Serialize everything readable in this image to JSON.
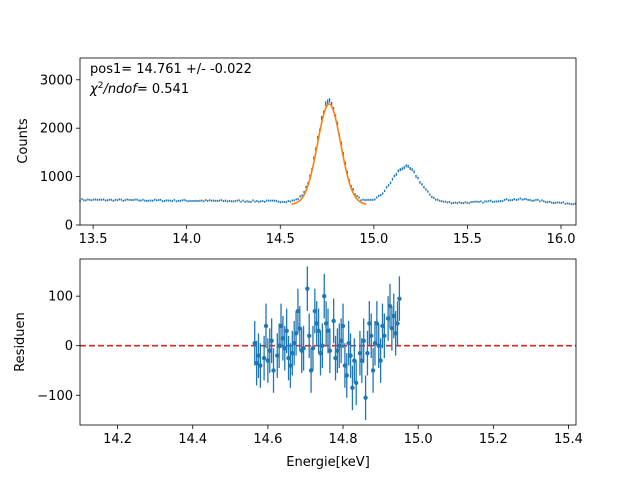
{
  "chart_data": [
    {
      "type": "scatter",
      "panel": "top",
      "ylabel": "Counts",
      "xlabel": "",
      "xlim": [
        13.43,
        16.08
      ],
      "ylim": [
        0,
        3450
      ],
      "xticks": [
        "13.5",
        "14.0",
        "14.5",
        "15.0",
        "15.5",
        "16.0"
      ],
      "xtick_values": [
        13.5,
        14.0,
        14.5,
        15.0,
        15.5,
        16.0
      ],
      "yticks": [
        "0",
        "1000",
        "2000",
        "3000"
      ],
      "ytick_values": [
        0,
        1000,
        2000,
        3000
      ],
      "annotations": {
        "line1": "pos1= 14.761 +/- -0.022",
        "line2_symbol": "χ",
        "line2_sup": "2",
        "line2_rest": "/ndof",
        "line2_value": "= 0.541"
      },
      "data_color": "#1f77b4",
      "fit_color": "#ff7f0e",
      "spectrum_features": {
        "baseline_start": 520,
        "baseline_end": 440,
        "peaks": [
          {
            "center": 14.761,
            "amplitude": 2080,
            "sigma": 0.062
          },
          {
            "center": 15.17,
            "amplitude": 730,
            "sigma": 0.075
          },
          {
            "center": 15.78,
            "amplitude": 80,
            "sigma": 0.12
          }
        ]
      },
      "fit": {
        "x_start": 14.56,
        "x_end": 14.96,
        "center": 14.761,
        "amplitude": 2080,
        "sigma": 0.062,
        "baseline": 420
      }
    },
    {
      "type": "scatter",
      "panel": "bottom",
      "xlabel": "Energie[keV]",
      "ylabel": "Residuen",
      "xlim": [
        14.1,
        15.42
      ],
      "ylim": [
        -160,
        175
      ],
      "xticks": [
        "14.2",
        "14.4",
        "14.6",
        "14.8",
        "15.0",
        "15.2",
        "15.4"
      ],
      "xtick_values": [
        14.2,
        14.4,
        14.6,
        14.8,
        15.0,
        15.2,
        15.4
      ],
      "yticks": [
        "−100",
        "0",
        "100"
      ],
      "ytick_values": [
        -100,
        0,
        100
      ],
      "zero_line_color": "#d62728",
      "point_color": "#1f77b4",
      "error": 45,
      "points": [
        [
          14.565,
          5
        ],
        [
          14.57,
          -35
        ],
        [
          14.575,
          -20
        ],
        [
          14.58,
          -40
        ],
        [
          14.59,
          -25
        ],
        [
          14.595,
          40
        ],
        [
          14.6,
          -30
        ],
        [
          14.605,
          -10
        ],
        [
          14.61,
          10
        ],
        [
          14.615,
          -50
        ],
        [
          14.625,
          -20
        ],
        [
          14.63,
          0
        ],
        [
          14.635,
          40
        ],
        [
          14.64,
          15
        ],
        [
          14.645,
          -5
        ],
        [
          14.65,
          30
        ],
        [
          14.655,
          -25
        ],
        [
          14.66,
          -40
        ],
        [
          14.665,
          -15
        ],
        [
          14.67,
          5
        ],
        [
          14.675,
          25
        ],
        [
          14.68,
          70
        ],
        [
          14.685,
          35
        ],
        [
          14.69,
          -10
        ],
        [
          14.695,
          -5
        ],
        [
          14.705,
          115
        ],
        [
          14.71,
          20
        ],
        [
          14.715,
          -50
        ],
        [
          14.72,
          -5
        ],
        [
          14.725,
          70
        ],
        [
          14.73,
          45
        ],
        [
          14.735,
          30
        ],
        [
          14.74,
          -15
        ],
        [
          14.745,
          0
        ],
        [
          14.75,
          100
        ],
        [
          14.755,
          45
        ],
        [
          14.76,
          30
        ],
        [
          14.765,
          -10
        ],
        [
          14.775,
          50
        ],
        [
          14.78,
          -25
        ],
        [
          14.785,
          -10
        ],
        [
          14.79,
          0
        ],
        [
          14.795,
          10
        ],
        [
          14.8,
          40
        ],
        [
          14.805,
          -40
        ],
        [
          14.81,
          -60
        ],
        [
          14.815,
          5
        ],
        [
          14.82,
          -20
        ],
        [
          14.825,
          -85
        ],
        [
          14.83,
          -30
        ],
        [
          14.835,
          -75
        ],
        [
          14.845,
          -15
        ],
        [
          14.85,
          -30
        ],
        [
          14.855,
          10
        ],
        [
          14.86,
          -105
        ],
        [
          14.865,
          -15
        ],
        [
          14.87,
          45
        ],
        [
          14.875,
          20
        ],
        [
          14.88,
          -50
        ],
        [
          14.885,
          5
        ],
        [
          14.89,
          45
        ],
        [
          14.895,
          0
        ],
        [
          14.9,
          -30
        ],
        [
          14.905,
          40
        ],
        [
          14.91,
          20
        ],
        [
          14.92,
          55
        ],
        [
          14.925,
          80
        ],
        [
          14.93,
          35
        ],
        [
          14.935,
          60
        ],
        [
          14.94,
          25
        ],
        [
          14.945,
          45
        ],
        [
          14.95,
          95
        ]
      ]
    }
  ]
}
